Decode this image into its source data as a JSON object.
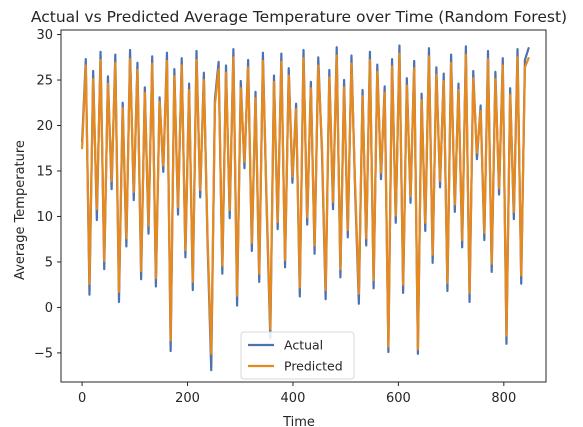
{
  "chart_data": {
    "type": "line",
    "title": "Actual vs Predicted Average Temperature over Time (Random Forest)",
    "xlabel": "Time",
    "ylabel": "Average Temperature",
    "xlim": [
      -40,
      880
    ],
    "ylim": [
      -8.2,
      30.5
    ],
    "x_ticks": [
      0,
      200,
      400,
      600,
      800
    ],
    "y_ticks": [
      -5,
      0,
      5,
      10,
      15,
      20,
      25,
      30
    ],
    "x_tick_labels": [
      "0",
      "200",
      "400",
      "600",
      "800"
    ],
    "y_tick_labels": [
      "−5",
      "0",
      "5",
      "10",
      "15",
      "20",
      "25",
      "30"
    ],
    "grid": false,
    "legend_position": "lower-center",
    "legend": [
      {
        "label": "Actual",
        "color": "#4c72b0"
      },
      {
        "label": "Predicted",
        "color": "#e6891f"
      }
    ],
    "series": [
      {
        "name": "Actual",
        "color": "#4c72b0",
        "x_start": 0,
        "x_step": 7,
        "values": [
          18.2,
          27.3,
          1.4,
          26.0,
          9.6,
          28.1,
          4.2,
          25.4,
          13.0,
          27.8,
          0.6,
          22.5,
          6.7,
          28.3,
          11.8,
          26.9,
          3.1,
          24.2,
          8.1,
          27.6,
          2.3,
          23.1,
          14.9,
          28.0,
          -4.8,
          26.2,
          10.2,
          27.4,
          5.5,
          24.6,
          1.9,
          28.2,
          12.1,
          25.8,
          7.0,
          -6.9,
          22.9,
          27.0,
          3.7,
          26.6,
          9.8,
          28.4,
          0.2,
          24.9,
          15.3,
          27.2,
          6.2,
          23.7,
          2.8,
          28.0,
          11.1,
          -3.4,
          25.5,
          8.6,
          27.9,
          4.4,
          26.3,
          13.7,
          22.4,
          1.2,
          28.3,
          9.1,
          24.8,
          5.9,
          27.5,
          17.1,
          0.9,
          26.1,
          10.8,
          28.6,
          3.3,
          25.0,
          7.7,
          27.7,
          12.6,
          0.4,
          23.9,
          6.8,
          28.1,
          2.1,
          26.7,
          14.1,
          24.3,
          -4.9,
          27.3,
          9.3,
          28.8,
          1.6,
          25.2,
          11.5,
          27.1,
          -5.1,
          23.5,
          8.4,
          28.5,
          4.9,
          26.4,
          13.2,
          25.7,
          1.8,
          27.8,
          10.5,
          24.6,
          6.6,
          28.7,
          0.6,
          26.0,
          16.3,
          22.2,
          7.4,
          28.2,
          3.9,
          25.9,
          12.4,
          27.4,
          -4.0,
          24.1,
          9.7,
          28.4,
          2.6,
          27.2,
          28.5
        ]
      },
      {
        "name": "Predicted",
        "color": "#e6891f",
        "x_start": 0,
        "x_step": 7,
        "values": [
          17.5,
          26.6,
          2.6,
          25.1,
          10.8,
          27.2,
          5.1,
          24.6,
          13.9,
          26.9,
          1.7,
          21.9,
          7.6,
          27.3,
          12.7,
          26.1,
          4.0,
          23.6,
          9.0,
          26.8,
          3.2,
          22.6,
          15.6,
          27.1,
          -3.6,
          25.4,
          11.0,
          26.6,
          6.3,
          23.9,
          2.8,
          27.2,
          12.9,
          25.0,
          7.8,
          -5.1,
          22.3,
          26.2,
          4.6,
          25.8,
          10.7,
          27.5,
          1.3,
          24.1,
          16.0,
          26.4,
          7.1,
          23.0,
          3.7,
          27.1,
          11.9,
          -2.4,
          24.8,
          9.4,
          27.0,
          5.2,
          25.5,
          14.4,
          21.8,
          2.2,
          27.4,
          9.9,
          24.1,
          6.8,
          26.6,
          17.8,
          1.9,
          25.3,
          11.6,
          27.7,
          4.2,
          24.2,
          8.5,
          26.8,
          13.4,
          1.5,
          23.2,
          7.6,
          27.2,
          3.0,
          25.9,
          14.8,
          23.6,
          -4.3,
          26.5,
          10.1,
          27.9,
          2.5,
          24.4,
          12.2,
          26.3,
          -4.6,
          22.8,
          9.3,
          27.6,
          5.8,
          25.6,
          13.9,
          24.9,
          2.7,
          26.9,
          11.3,
          23.9,
          7.4,
          27.8,
          1.6,
          25.2,
          17.0,
          21.6,
          8.2,
          27.3,
          4.8,
          25.1,
          13.1,
          26.6,
          -3.1,
          23.4,
          10.5,
          27.5,
          3.5,
          26.4,
          27.4
        ]
      }
    ]
  }
}
